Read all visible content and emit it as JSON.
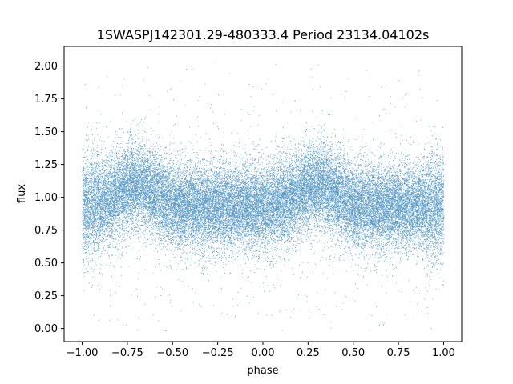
{
  "chart_data": {
    "type": "scatter",
    "title": "1SWASPJ142301.29-480333.4 Period 23134.04102s",
    "xlabel": "phase",
    "ylabel": "flux",
    "xlim": [
      -1.1,
      1.1
    ],
    "ylim": [
      -0.1,
      2.15
    ],
    "xticks": [
      -1.0,
      -0.75,
      -0.5,
      -0.25,
      0.0,
      0.25,
      0.5,
      0.75,
      1.0
    ],
    "xtick_labels": [
      "−1.00",
      "−0.75",
      "−0.50",
      "−0.25",
      "0.00",
      "0.25",
      "0.50",
      "0.75",
      "1.00"
    ],
    "yticks": [
      0.0,
      0.25,
      0.5,
      0.75,
      1.0,
      1.25,
      1.5,
      1.75,
      2.0
    ],
    "ytick_labels": [
      "0.00",
      "0.25",
      "0.50",
      "0.75",
      "1.00",
      "1.25",
      "1.50",
      "1.75",
      "2.00"
    ],
    "grid": false,
    "marker_color": "#1f77b4",
    "series": [
      {
        "x_range": [
          -1.0,
          1.0
        ],
        "baseline_flux": 0.93,
        "hump_centers": [
          -0.7,
          0.3
        ],
        "hump_amplitude": 0.17,
        "point_count": 35000
      }
    ]
  }
}
